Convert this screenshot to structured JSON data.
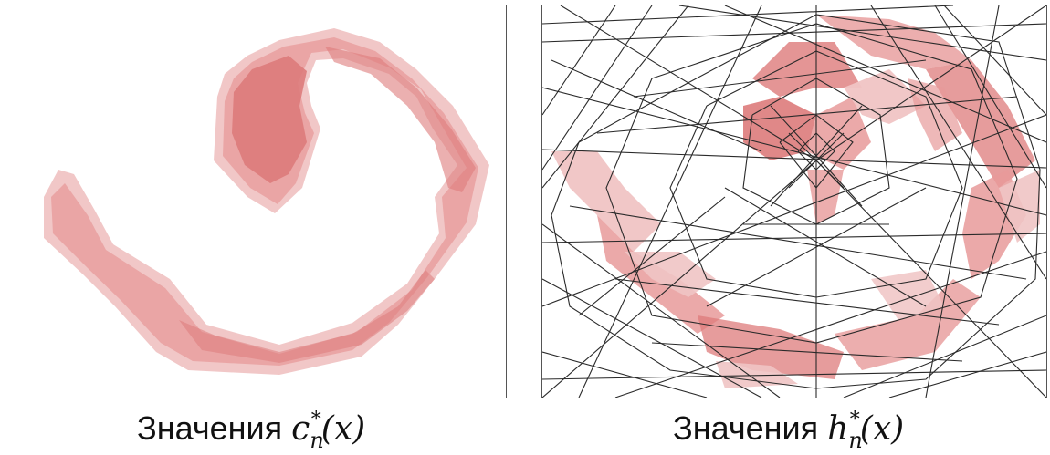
{
  "panels": [
    {
      "id": "left",
      "caption_text": "Значения",
      "caption_symbol": "c",
      "caption_subscript": "n",
      "caption_superscript": "*",
      "caption_argument": "(x)"
    },
    {
      "id": "right",
      "caption_text": "Значения",
      "caption_symbol": "h",
      "caption_subscript": "n",
      "caption_superscript": "*",
      "caption_argument": "(x)"
    }
  ],
  "colors": {
    "fill_light": "#f0c4c4",
    "fill_mid": "#e79a9a",
    "fill_dark": "#dd7b7b",
    "mesh_line": "#2a2a2a",
    "frame": "#555555"
  }
}
